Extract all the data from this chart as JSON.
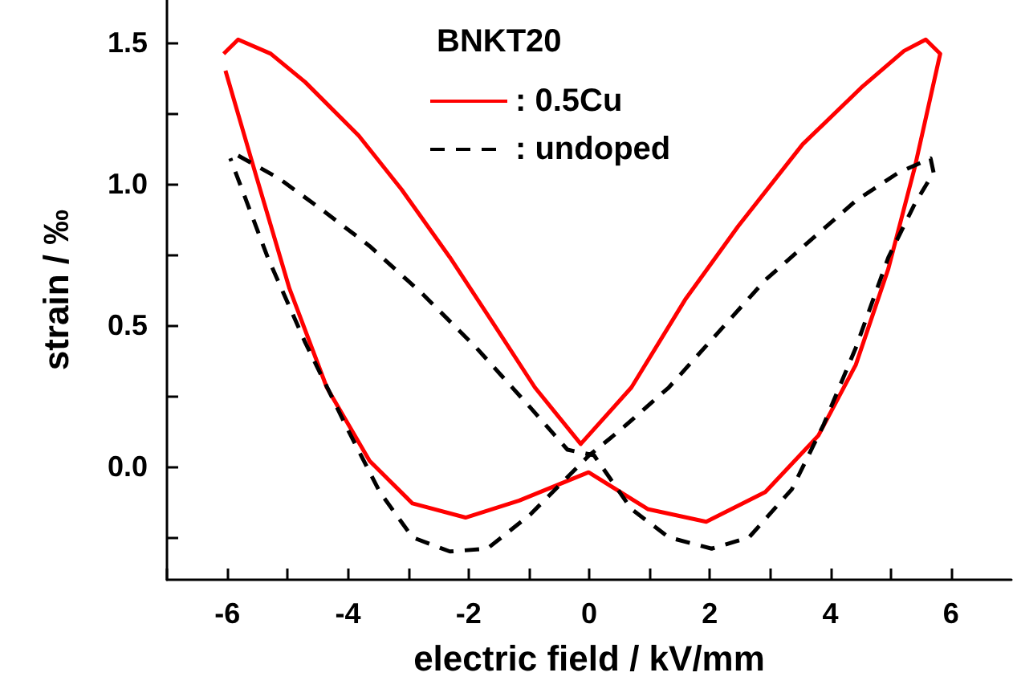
{
  "chart_data": {
    "type": "line",
    "xlabel": "electric field / kV/mm",
    "ylabel": "strain / ‰",
    "legend_title": "BNKT20",
    "xlim": [
      -7,
      7
    ],
    "ylim": [
      -0.4,
      1.65
    ],
    "xticks": [
      {
        "value": -7,
        "label": null
      },
      -6,
      {
        "value": -5,
        "label": null
      },
      -4,
      {
        "value": -3,
        "label": null
      },
      -2,
      {
        "value": -1,
        "label": null
      },
      0,
      {
        "value": 1,
        "label": null
      },
      2,
      {
        "value": 3,
        "label": null
      },
      4,
      {
        "value": 5,
        "label": null
      },
      6
    ],
    "yticks": [
      {
        "value": -0.25,
        "label": null
      },
      {
        "value": 0,
        "label": "0.0"
      },
      {
        "value": 0.25,
        "label": null
      },
      0.5,
      {
        "value": 0.75,
        "label": null
      },
      {
        "value": 1,
        "label": "1.0"
      },
      {
        "value": 1.25,
        "label": null
      },
      1.5
    ],
    "grid": false,
    "legend": "top",
    "marker": "none",
    "series": [
      {
        "name": ": 0.5Cu",
        "color": "#ff0000",
        "line_style": "solid",
        "x": [
          -6.06,
          -5.82,
          -5.28,
          -4.71,
          -3.82,
          -3.11,
          -2.31,
          -1.6,
          -0.9,
          -0.14,
          0.7,
          1.59,
          2.47,
          3.54,
          4.51,
          5.22,
          5.58,
          5.82,
          5.4,
          4.96,
          4.42,
          3.8,
          2.92,
          1.94,
          0.97,
          -0.01,
          -1.16,
          -2.05,
          -2.93,
          -3.64,
          -4.35,
          -4.97,
          -5.51,
          -6.03
        ],
        "values": [
          1.46,
          1.51,
          1.46,
          1.36,
          1.17,
          0.98,
          0.74,
          0.51,
          0.28,
          0.08,
          0.28,
          0.59,
          0.85,
          1.14,
          1.34,
          1.47,
          1.51,
          1.46,
          1.06,
          0.7,
          0.36,
          0.11,
          -0.09,
          -0.195,
          -0.15,
          -0.02,
          -0.12,
          -0.18,
          -0.13,
          0.02,
          0.28,
          0.63,
          1.02,
          1.4
        ]
      },
      {
        "name": ": undoped",
        "color": "#000000",
        "line_style": "dashed",
        "x": [
          -5.82,
          -5.15,
          -4.44,
          -3.64,
          -2.76,
          -1.87,
          -0.98,
          -0.36,
          0.08,
          0.7,
          1.32,
          2.03,
          2.65,
          3.36,
          3.89,
          4.42,
          4.96,
          5.4,
          5.71,
          5.66,
          5.13,
          4.42,
          3.72,
          2.92,
          2.12,
          1.32,
          0.52,
          0,
          -0.98,
          -1.69,
          -2.31,
          -2.93,
          -3.47,
          -4.0,
          -4.71,
          -5.33,
          -5.95
        ],
        "values": [
          1.1,
          1.02,
          0.91,
          0.78,
          0.61,
          0.42,
          0.21,
          0.06,
          0.04,
          -0.15,
          -0.25,
          -0.29,
          -0.25,
          -0.08,
          0.15,
          0.42,
          0.74,
          0.93,
          1.04,
          1.09,
          1.04,
          0.94,
          0.81,
          0.66,
          0.47,
          0.28,
          0.13,
          0.04,
          -0.17,
          -0.29,
          -0.3,
          -0.25,
          -0.09,
          0.13,
          0.44,
          0.74,
          1.09
        ]
      }
    ]
  }
}
